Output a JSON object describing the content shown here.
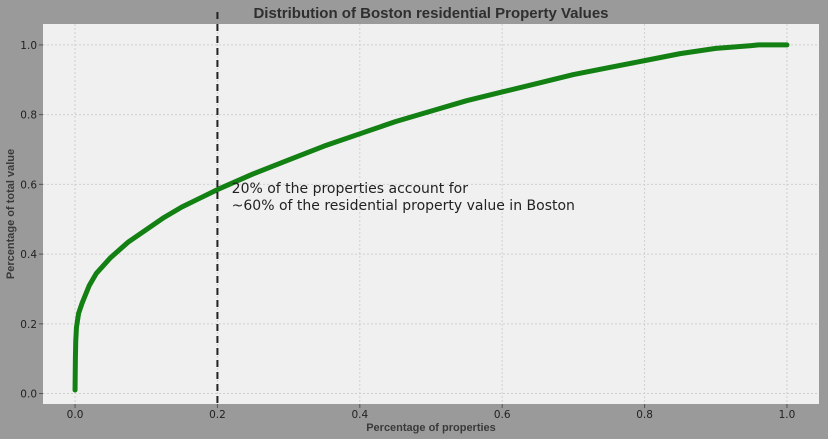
{
  "chart_data": {
    "type": "line",
    "title": "Distribution of Boston residential Property Values",
    "xlabel": "Percentage of properties",
    "ylabel": "Percentage of total value",
    "xlim": [
      -0.045,
      1.045
    ],
    "ylim": [
      -0.03,
      1.06
    ],
    "xticks": [
      0.0,
      0.2,
      0.4,
      0.6,
      0.8,
      1.0
    ],
    "yticks": [
      0.0,
      0.2,
      0.4,
      0.6,
      0.8,
      1.0
    ],
    "xtick_labels": [
      "0.0",
      "0.2",
      "0.4",
      "0.6",
      "0.8",
      "1.0"
    ],
    "ytick_labels": [
      "0.0",
      "0.2",
      "0.4",
      "0.6",
      "0.8",
      "1.0"
    ],
    "grid": true,
    "series": [
      {
        "color": "#138013",
        "x": [
          0.0,
          0.0005,
          0.001,
          0.002,
          0.005,
          0.01,
          0.02,
          0.03,
          0.05,
          0.075,
          0.1,
          0.125,
          0.15,
          0.175,
          0.2,
          0.25,
          0.3,
          0.35,
          0.4,
          0.45,
          0.5,
          0.55,
          0.6,
          0.65,
          0.7,
          0.75,
          0.8,
          0.85,
          0.9,
          0.95,
          0.96,
          0.97,
          0.98,
          0.99,
          1.0
        ],
        "y": [
          0.01,
          0.1,
          0.15,
          0.19,
          0.23,
          0.26,
          0.31,
          0.345,
          0.39,
          0.435,
          0.47,
          0.505,
          0.535,
          0.56,
          0.585,
          0.63,
          0.67,
          0.71,
          0.745,
          0.78,
          0.81,
          0.84,
          0.865,
          0.89,
          0.915,
          0.935,
          0.955,
          0.975,
          0.99,
          0.998,
          1.0,
          1.0,
          1.0,
          1.0,
          1.0
        ]
      }
    ],
    "vline": {
      "x": 0.2,
      "color": "#222222",
      "style": "dashed"
    },
    "annotation": {
      "lines": [
        "20% of the properties account for",
        "~60% of the residential property value in Boston"
      ],
      "x": 0.22,
      "y": 0.575
    }
  },
  "colors": {
    "figure_background": "#9a9a9a",
    "plot_background": "#f0f0f0",
    "line": "#138013"
  }
}
